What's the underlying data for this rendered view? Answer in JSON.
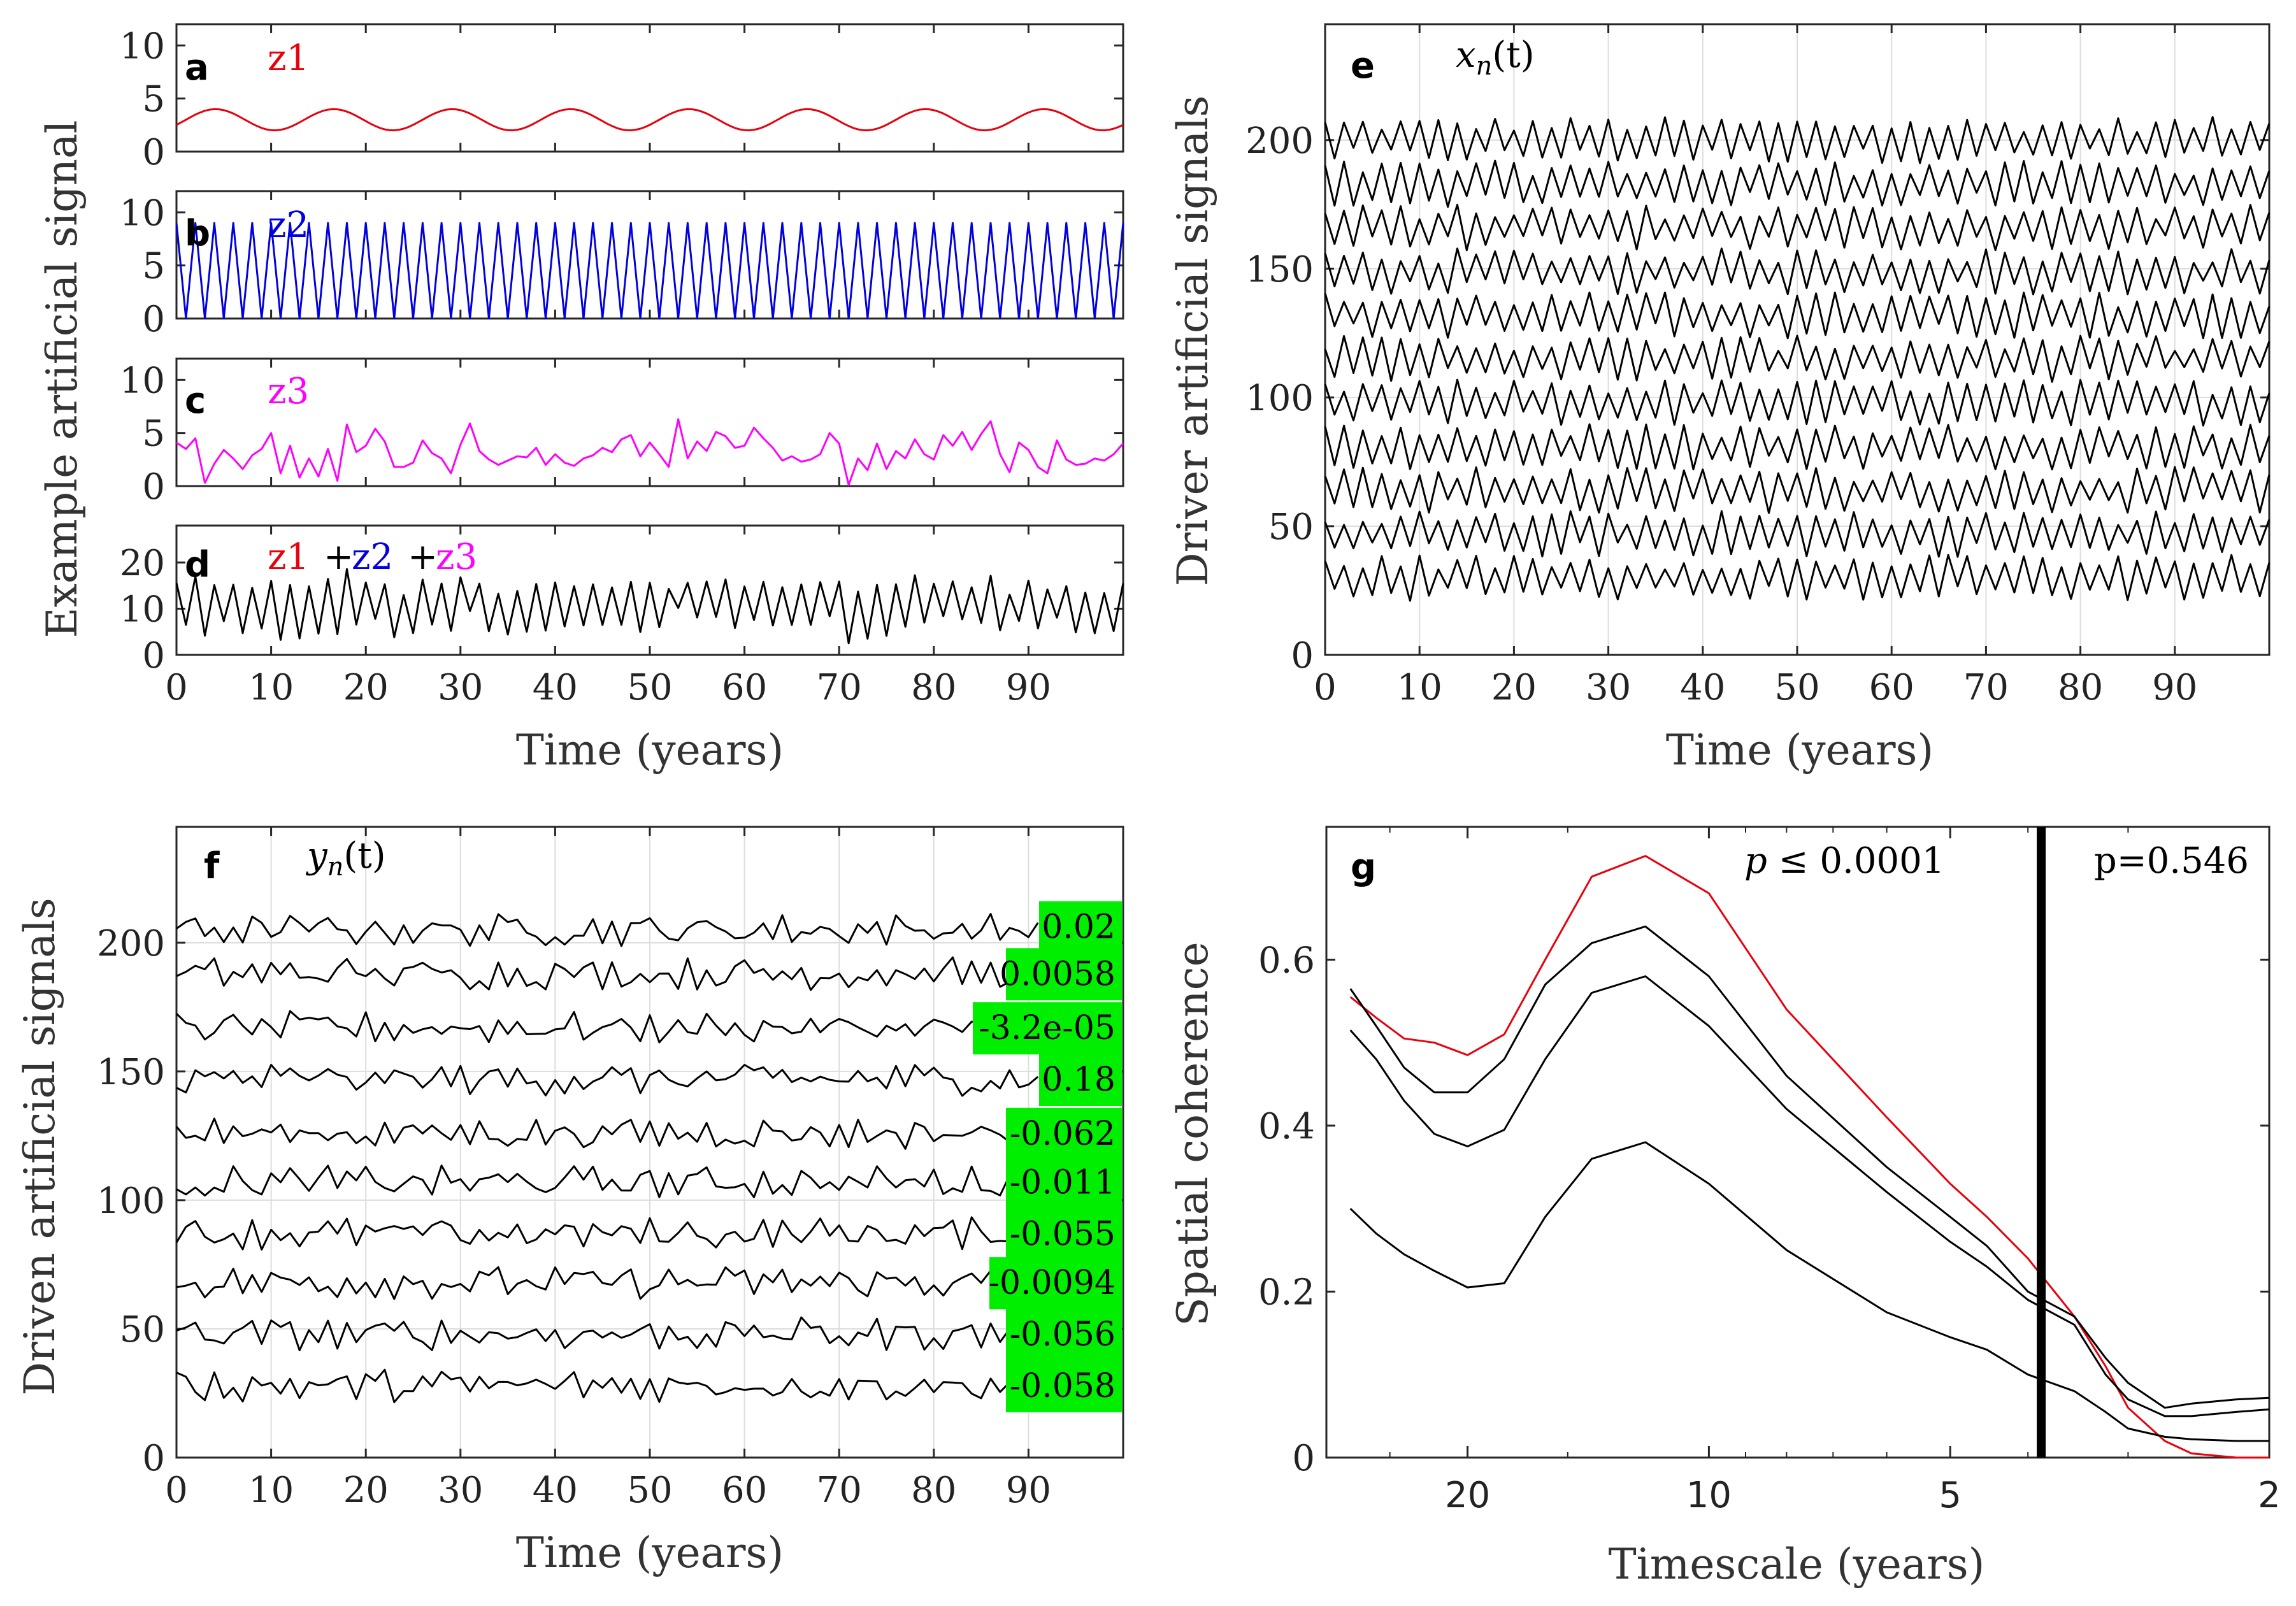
{
  "figure": {
    "panel_a": {
      "letter": "a",
      "label": "z1",
      "label_color": "#e8000b"
    },
    "panel_b": {
      "letter": "b",
      "label": "z2",
      "label_color": "#0000e0"
    },
    "panel_c": {
      "letter": "c",
      "label": "z3",
      "label_color": "#ff00ff"
    },
    "panel_d": {
      "letter": "d",
      "label_parts": [
        {
          "t": "z1",
          "c": "#e8000b"
        },
        {
          "t": "+",
          "c": "#000000"
        },
        {
          "t": "z2",
          "c": "#0000e0"
        },
        {
          "t": "+",
          "c": "#000000"
        },
        {
          "t": "z3",
          "c": "#ff00ff"
        }
      ]
    },
    "panel_e": {
      "letter": "e",
      "math_label": "x",
      "math_sub": "n",
      "math_arg": "(t)"
    },
    "panel_f": {
      "letter": "f",
      "math_label": "y",
      "math_sub": "n",
      "math_arg": "(t)"
    },
    "panel_g": {
      "letter": "g",
      "annotation_left_p": "p",
      "annotation_left_rest": " ≤ 0.0001",
      "annotation_right": "p=0.546"
    },
    "ylabel_abcd": "Example artificial signal",
    "ylabel_e": "Driver artificial signals",
    "ylabel_f": "Driven artificial signals",
    "ylabel_g": "Spatial coherence",
    "xlabel_time": "Time (years)",
    "xlabel_timescale": "Timescale (years)"
  },
  "chart_data": [
    {
      "id": "a",
      "type": "line",
      "xlim": [
        0,
        100
      ],
      "ylim": [
        0,
        12
      ],
      "yticks": [
        0,
        5,
        10
      ],
      "xgrid": false,
      "series": [
        {
          "color": "#e8000b",
          "kind": "sine",
          "mean": 3,
          "amp": 1,
          "period": 12.5,
          "phase": -0.5
        }
      ]
    },
    {
      "id": "b",
      "type": "line",
      "xlim": [
        0,
        100
      ],
      "ylim": [
        0,
        12
      ],
      "yticks": [
        0,
        5,
        10
      ],
      "xgrid": false,
      "series": [
        {
          "color": "#0000e0",
          "kind": "zigzag",
          "low": 0,
          "high": 9,
          "step": 1
        }
      ]
    },
    {
      "id": "c",
      "type": "line",
      "xlim": [
        0,
        100
      ],
      "ylim": [
        0,
        12
      ],
      "yticks": [
        0,
        5,
        10
      ],
      "xgrid": false,
      "series": [
        {
          "color": "#ff00ff",
          "values": [
            4.1,
            3.5,
            4.5,
            0.3,
            2.1,
            3.4,
            2.6,
            1.6,
            2.9,
            3.5,
            5.0,
            1.2,
            3.8,
            0.8,
            2.6,
            0.9,
            3.5,
            0.5,
            5.8,
            3.2,
            3.8,
            5.4,
            4.2,
            1.8,
            1.8,
            2.2,
            4.3,
            3.1,
            2.6,
            1.2,
            3.9,
            5.9,
            3.3,
            2.5,
            2.0,
            2.4,
            2.8,
            2.7,
            3.6,
            2.0,
            3.0,
            2.2,
            1.9,
            2.6,
            2.9,
            3.6,
            3.2,
            4.4,
            4.8,
            2.8,
            4.1,
            3.0,
            1.8,
            6.3,
            2.6,
            4.2,
            3.3,
            5.1,
            4.7,
            3.6,
            3.8,
            5.5,
            4.5,
            3.6,
            2.4,
            2.8,
            2.3,
            2.5,
            3.0,
            5.0,
            4.0,
            0.1,
            2.6,
            1.5,
            4.0,
            1.6,
            3.3,
            2.6,
            4.4,
            3.0,
            2.5,
            4.8,
            3.8,
            5.1,
            3.4,
            4.9,
            6.1,
            3.0,
            1.3,
            4.1,
            3.4,
            1.8,
            1.2,
            4.3,
            2.5,
            2.0,
            2.1,
            2.6,
            2.4,
            3.0,
            4.0
          ]
        }
      ]
    },
    {
      "id": "d",
      "type": "line",
      "xlim": [
        0,
        100
      ],
      "ylim": [
        0,
        28
      ],
      "yticks": [
        0,
        10,
        20
      ],
      "xgrid": false,
      "series": [
        {
          "color": "#000000",
          "kind": "sum_of_abc"
        }
      ]
    },
    {
      "id": "e",
      "type": "line",
      "xlim": [
        0,
        100
      ],
      "ylim": [
        0,
        245
      ],
      "yticks": [
        0,
        50,
        100,
        150,
        200
      ],
      "xgrid": true,
      "series_offsets": [
        200,
        183,
        166,
        149,
        132,
        115,
        98,
        81,
        64,
        47,
        30
      ],
      "series_amplitude": 6,
      "color": "#000000"
    },
    {
      "id": "f",
      "type": "line",
      "xlim": [
        0,
        100
      ],
      "ylim": [
        0,
        245
      ],
      "yticks": [
        0,
        50,
        100,
        150,
        200
      ],
      "xgrid": true,
      "series_offsets": [
        205,
        188,
        167,
        147,
        126,
        107,
        87,
        68,
        48,
        28
      ],
      "series_amplitude": 5,
      "color": "#000000",
      "badges": [
        "0.02",
        "0.0058",
        "-3.2e-05",
        "0.18",
        "-0.062",
        "-0.011",
        "-0.055",
        "-0.0094",
        "-0.056",
        "-0.058"
      ]
    },
    {
      "id": "g",
      "type": "line",
      "xscale": "log-timescale",
      "xlim_years": [
        30,
        2
      ],
      "xticks": [
        20,
        10,
        5,
        2
      ],
      "ylim": [
        0,
        0.76
      ],
      "yticks": [
        0,
        0.2,
        0.4,
        0.6
      ],
      "x_years": [
        28,
        26,
        24,
        22,
        20,
        18,
        16,
        14,
        12,
        10,
        8,
        6,
        5,
        4.5,
        4,
        3.5,
        3.2,
        3,
        2.7,
        2.5,
        2.2,
        2
      ],
      "series": [
        {
          "color": "#e8000b",
          "values": [
            0.555,
            0.53,
            0.505,
            0.5,
            0.485,
            0.51,
            0.6,
            0.7,
            0.725,
            0.68,
            0.54,
            0.41,
            0.33,
            0.29,
            0.24,
            0.17,
            0.11,
            0.06,
            0.02,
            0.005,
            0.0,
            0.0
          ]
        },
        {
          "color": "#000000",
          "values": [
            0.565,
            0.52,
            0.47,
            0.44,
            0.44,
            0.48,
            0.57,
            0.62,
            0.64,
            0.58,
            0.46,
            0.35,
            0.29,
            0.255,
            0.2,
            0.17,
            0.12,
            0.09,
            0.06,
            0.065,
            0.07,
            0.072
          ]
        },
        {
          "color": "#000000",
          "values": [
            0.515,
            0.48,
            0.43,
            0.39,
            0.375,
            0.395,
            0.48,
            0.56,
            0.58,
            0.52,
            0.42,
            0.32,
            0.26,
            0.23,
            0.19,
            0.16,
            0.1,
            0.07,
            0.05,
            0.05,
            0.055,
            0.058
          ]
        },
        {
          "color": "#000000",
          "values": [
            0.3,
            0.27,
            0.245,
            0.225,
            0.205,
            0.21,
            0.29,
            0.36,
            0.38,
            0.33,
            0.25,
            0.175,
            0.145,
            0.13,
            0.1,
            0.08,
            0.055,
            0.035,
            0.025,
            0.022,
            0.02,
            0.02
          ]
        }
      ],
      "vline_years": 3.85
    }
  ]
}
